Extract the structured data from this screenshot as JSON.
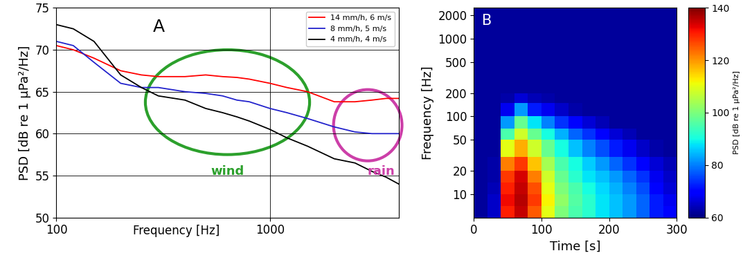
{
  "chart_data": [
    {
      "type": "line",
      "title": "A",
      "xlabel": "Frequency [Hz]",
      "ylabel": "PSD [dB re 1 µPa²/Hz]",
      "log": "x",
      "grid": true,
      "legend": "upper right",
      "xlim": [
        100,
        4000
      ],
      "xticks": [
        100,
        1000
      ],
      "ylim": [
        50,
        75
      ],
      "yticks": [
        50,
        55,
        60,
        65,
        70,
        75
      ],
      "x": [
        100,
        120,
        150,
        200,
        250,
        300,
        400,
        500,
        600,
        700,
        800,
        1000,
        1200,
        1500,
        2000,
        2500,
        3000,
        3500,
        4000
      ],
      "series": [
        {
          "name": "14 mm/h, 6 m/s",
          "color": "#ff0000",
          "values": [
            70.5,
            70,
            69,
            67.5,
            67,
            66.8,
            66.8,
            67,
            66.8,
            66.7,
            66.5,
            66,
            65.5,
            65,
            63.8,
            63.8,
            64,
            64.2,
            64.2
          ]
        },
        {
          "name": "8 mm/h, 5 m/s",
          "color": "#2222cc",
          "values": [
            71,
            70.5,
            68.5,
            66,
            65.5,
            65.5,
            65,
            64.8,
            64.5,
            64,
            63.8,
            63,
            62.5,
            61.8,
            60.8,
            60.2,
            60,
            60,
            60
          ]
        },
        {
          "name": "4 mm/h, 4 m/s",
          "color": "#000000",
          "values": [
            73,
            72.5,
            71,
            67,
            65.5,
            64.5,
            64,
            63,
            62.5,
            62,
            61.5,
            60.5,
            59.5,
            58.5,
            57,
            56.5,
            55.5,
            54.8,
            54
          ]
        }
      ],
      "annotations": [
        {
          "text": "wind",
          "color": "#2ca02c"
        },
        {
          "text": "rain",
          "color": "#cc3fa8"
        }
      ]
    },
    {
      "type": "heatmap",
      "title": "B",
      "xlabel": "Time [s]",
      "ylabel": "Frequency [Hz]",
      "log": "y",
      "xlim": [
        0,
        300
      ],
      "xticks": [
        0,
        100,
        200,
        300
      ],
      "ylim": [
        5,
        2500
      ],
      "yticks": [
        10,
        20,
        50,
        100,
        200,
        500,
        1000,
        2000
      ],
      "x_edges": [
        0,
        20,
        40,
        60,
        80,
        100,
        120,
        140,
        160,
        180,
        200,
        220,
        240,
        260,
        280,
        300
      ],
      "y_edges": [
        5,
        7,
        10,
        14,
        20,
        30,
        50,
        70,
        100,
        150,
        200,
        300,
        500,
        1000,
        2500
      ],
      "cells": [
        [
          62,
          65,
          130,
          135,
          125,
          110,
          100,
          95,
          92,
          88,
          85,
          82,
          78,
          72,
          70
        ],
        [
          62,
          65,
          132,
          136,
          128,
          112,
          102,
          96,
          92,
          88,
          85,
          82,
          78,
          72,
          68
        ],
        [
          62,
          64,
          130,
          135,
          126,
          110,
          100,
          95,
          90,
          87,
          84,
          80,
          76,
          70,
          66
        ],
        [
          62,
          63,
          128,
          134,
          122,
          108,
          98,
          92,
          88,
          85,
          82,
          78,
          74,
          68,
          65
        ],
        [
          62,
          63,
          122,
          128,
          116,
          104,
          95,
          90,
          86,
          82,
          78,
          74,
          70,
          66,
          64
        ],
        [
          62,
          62,
          110,
          118,
          108,
          98,
          90,
          85,
          80,
          76,
          72,
          68,
          65,
          63,
          62
        ],
        [
          62,
          62,
          95,
          108,
          98,
          90,
          84,
          78,
          74,
          70,
          66,
          64,
          62,
          62,
          62
        ],
        [
          62,
          62,
          82,
          98,
          88,
          80,
          74,
          70,
          66,
          64,
          62,
          62,
          62,
          62,
          62
        ],
        [
          62,
          62,
          68,
          82,
          72,
          68,
          65,
          63,
          62,
          62,
          62,
          62,
          62,
          62,
          62
        ],
        [
          62,
          62,
          63,
          66,
          64,
          63,
          62,
          62,
          62,
          62,
          62,
          62,
          62,
          62,
          62
        ],
        [
          62,
          62,
          62,
          62,
          62,
          62,
          62,
          62,
          62,
          62,
          62,
          62,
          62,
          62,
          62
        ],
        [
          62,
          62,
          62,
          62,
          62,
          62,
          62,
          62,
          62,
          62,
          62,
          62,
          62,
          62,
          62
        ],
        [
          62,
          62,
          62,
          62,
          62,
          62,
          62,
          62,
          62,
          62,
          62,
          62,
          62,
          62,
          62
        ],
        [
          62,
          62,
          62,
          62,
          62,
          62,
          62,
          62,
          62,
          62,
          62,
          62,
          62,
          62,
          62
        ]
      ],
      "colorbar_label": "PSD [dB re 1 µPa²/Hz]",
      "colorbar_range": [
        60,
        140
      ],
      "colorbar_ticks": [
        60,
        80,
        100,
        120,
        140
      ]
    }
  ]
}
